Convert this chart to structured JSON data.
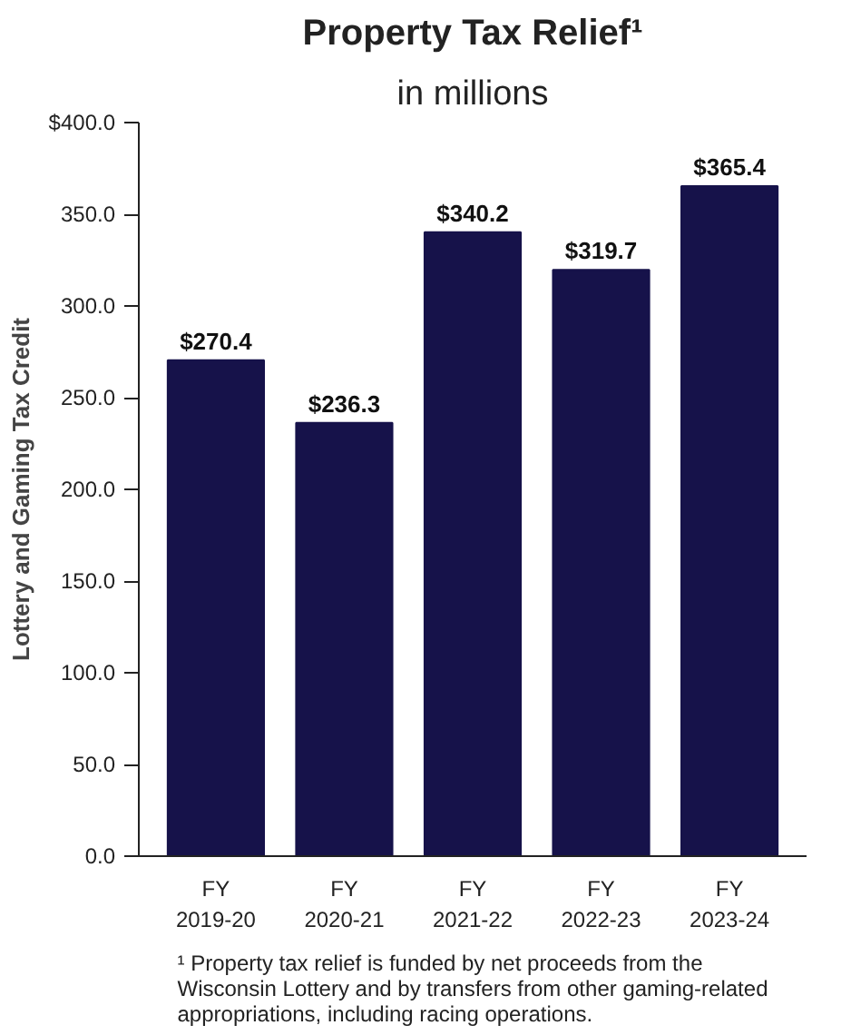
{
  "chart_data": {
    "type": "bar",
    "title": "Property Tax Relief¹",
    "subtitle": "in millions",
    "ylabel": "Lottery and Gaming Tax Credit",
    "categories": [
      "FY\n2019-20",
      "FY\n2020-21",
      "FY\n2021-22",
      "FY\n2022-23",
      "FY\n2023-24"
    ],
    "values": [
      270.4,
      236.3,
      340.2,
      319.7,
      365.4
    ],
    "value_labels": [
      "$270.4",
      "$236.3",
      "$340.2",
      "$319.7",
      "$365.4"
    ],
    "color": "#16124a",
    "ylim": [
      0,
      400
    ],
    "yticks": [
      {
        "value": 0,
        "label": "0.0"
      },
      {
        "value": 50,
        "label": "50.0"
      },
      {
        "value": 100,
        "label": "100.0"
      },
      {
        "value": 150,
        "label": "150.0"
      },
      {
        "value": 200,
        "label": "200.0"
      },
      {
        "value": 250,
        "label": "250.0"
      },
      {
        "value": 300,
        "label": "300.0"
      },
      {
        "value": 350,
        "label": "350.0"
      },
      {
        "value": 400,
        "label": "$400.0"
      }
    ],
    "grid": false,
    "annotations": [
      "¹ Property tax relief is funded by net proceeds from the\nWisconsin Lottery and by transfers from other gaming-related\nappropriations, including racing operations."
    ]
  }
}
